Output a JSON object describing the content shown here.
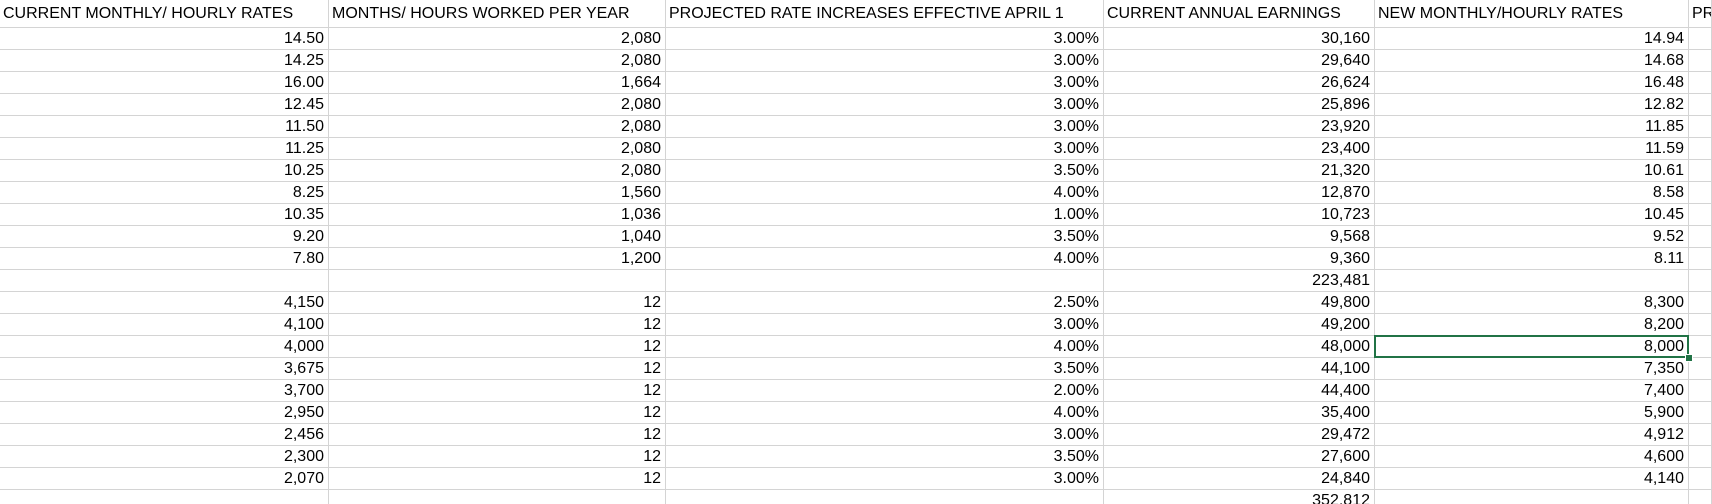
{
  "table": {
    "headers": [
      "CURRENT MONTHLY/ HOURLY RATES",
      "MONTHS/ HOURS WORKED PER YEAR",
      "PROJECTED RATE INCREASES EFFECTIVE APRIL 1",
      "CURRENT ANNUAL EARNINGS",
      "NEW MONTHLY/HOURLY RATES",
      "PR"
    ],
    "rows": [
      [
        "14.50",
        "2,080",
        "3.00%",
        "30,160",
        "14.94"
      ],
      [
        "14.25",
        "2,080",
        "3.00%",
        "29,640",
        "14.68"
      ],
      [
        "16.00",
        "1,664",
        "3.00%",
        "26,624",
        "16.48"
      ],
      [
        "12.45",
        "2,080",
        "3.00%",
        "25,896",
        "12.82"
      ],
      [
        "11.50",
        "2,080",
        "3.00%",
        "23,920",
        "11.85"
      ],
      [
        "11.25",
        "2,080",
        "3.00%",
        "23,400",
        "11.59"
      ],
      [
        "10.25",
        "2,080",
        "3.50%",
        "21,320",
        "10.61"
      ],
      [
        "8.25",
        "1,560",
        "4.00%",
        "12,870",
        "8.58"
      ],
      [
        "10.35",
        "1,036",
        "1.00%",
        "10,723",
        "10.45"
      ],
      [
        "9.20",
        "1,040",
        "3.50%",
        "9,568",
        "9.52"
      ],
      [
        "7.80",
        "1,200",
        "4.00%",
        "9,360",
        "8.11"
      ],
      [
        null,
        null,
        null,
        "223,481",
        null
      ],
      [
        "4,150",
        "12",
        "2.50%",
        "49,800",
        "8,300"
      ],
      [
        "4,100",
        "12",
        "3.00%",
        "49,200",
        "8,200"
      ],
      [
        "4,000",
        "12",
        "4.00%",
        "48,000",
        "8,000"
      ],
      [
        "3,675",
        "12",
        "3.50%",
        "44,100",
        "7,350"
      ],
      [
        "3,700",
        "12",
        "2.00%",
        "44,400",
        "7,400"
      ],
      [
        "2,950",
        "12",
        "4.00%",
        "35,400",
        "5,900"
      ],
      [
        "2,456",
        "12",
        "3.00%",
        "29,472",
        "4,912"
      ],
      [
        "2,300",
        "12",
        "3.50%",
        "27,600",
        "4,600"
      ],
      [
        "2,070",
        "12",
        "3.00%",
        "24,840",
        "4,140"
      ],
      [
        null,
        null,
        null,
        "352,812",
        null
      ]
    ]
  }
}
